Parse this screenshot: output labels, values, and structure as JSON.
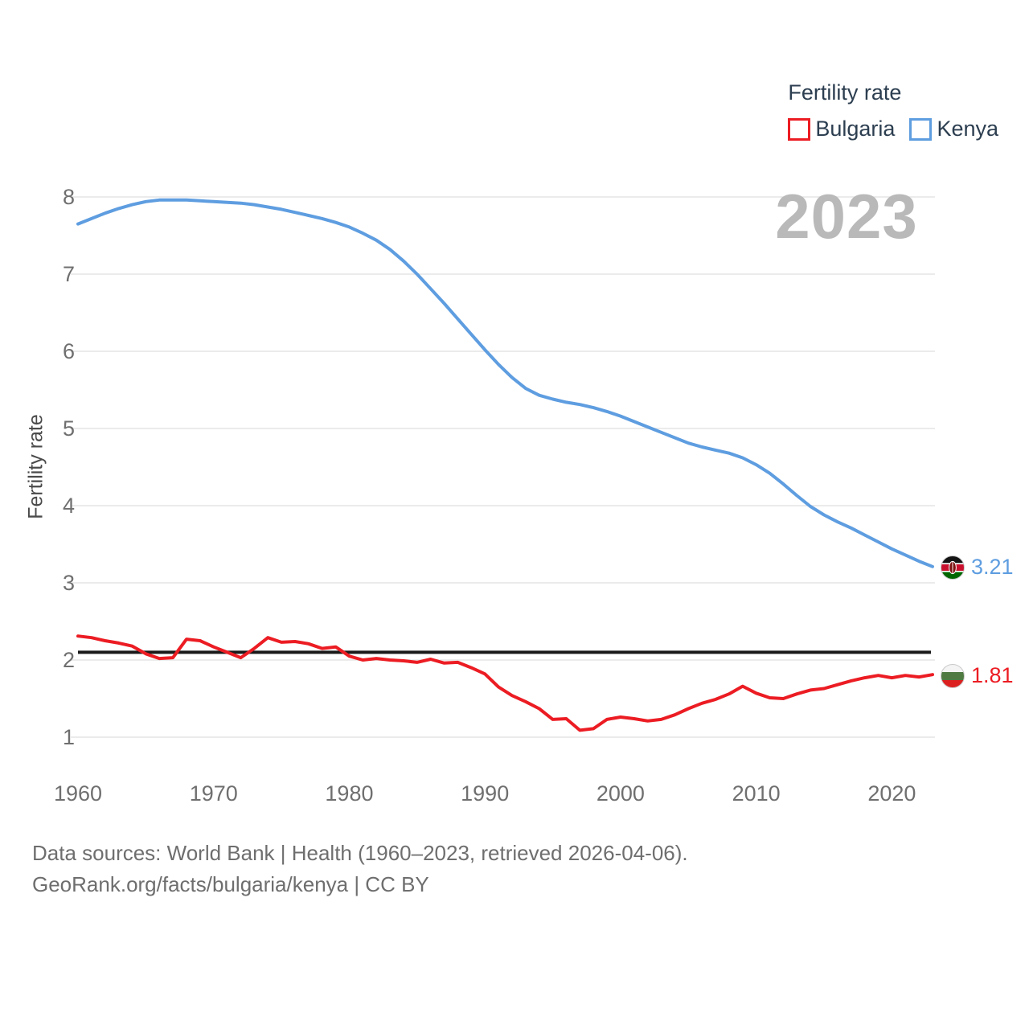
{
  "legend": {
    "title": "Fertility rate",
    "items": [
      {
        "label": "Bulgaria",
        "color": "#ec1c23"
      },
      {
        "label": "Kenya",
        "color": "#5e9de0"
      }
    ]
  },
  "watermark": "2023",
  "end_labels": {
    "kenya": {
      "series": "Kenya",
      "value": "3.21",
      "color": "#5e9de0",
      "flag": "kenya-flag-icon"
    },
    "bulgaria": {
      "series": "Bulgaria",
      "value": "1.81",
      "color": "#ec1c23",
      "flag": "bulgaria-flag-icon"
    }
  },
  "footer": {
    "line1": "Data sources: World Bank | Health (1960–2023, retrieved 2026-04-06).",
    "line2": "GeoRank.org/facts/bulgaria/kenya | CC BY"
  },
  "chart_data": {
    "type": "line",
    "title": "Fertility rate",
    "ylabel": "Fertility rate",
    "xlabel": "",
    "ylim": [
      1,
      8
    ],
    "x_range": [
      1960,
      2023
    ],
    "y_ticks": [
      1,
      2,
      3,
      4,
      5,
      6,
      7,
      8
    ],
    "x_ticks": [
      1960,
      1970,
      1980,
      1990,
      2000,
      2010,
      2020
    ],
    "grid": "horizontal",
    "legend_position": "top-right",
    "watermark": "2023",
    "reference_line": {
      "value": 2.1,
      "color": "#1a1a1a"
    },
    "years": [
      1960,
      1961,
      1962,
      1963,
      1964,
      1965,
      1966,
      1967,
      1968,
      1969,
      1970,
      1971,
      1972,
      1973,
      1974,
      1975,
      1976,
      1977,
      1978,
      1979,
      1980,
      1981,
      1982,
      1983,
      1984,
      1985,
      1986,
      1987,
      1988,
      1989,
      1990,
      1991,
      1992,
      1993,
      1994,
      1995,
      1996,
      1997,
      1998,
      1999,
      2000,
      2001,
      2002,
      2003,
      2004,
      2005,
      2006,
      2007,
      2008,
      2009,
      2010,
      2011,
      2012,
      2013,
      2014,
      2015,
      2016,
      2017,
      2018,
      2019,
      2020,
      2021,
      2022,
      2023
    ],
    "series": [
      {
        "name": "Bulgaria",
        "color": "#ec1c23",
        "end_value": 1.81,
        "values": [
          2.31,
          2.29,
          2.25,
          2.22,
          2.18,
          2.08,
          2.02,
          2.03,
          2.27,
          2.25,
          2.17,
          2.1,
          2.03,
          2.15,
          2.29,
          2.23,
          2.24,
          2.21,
          2.15,
          2.17,
          2.05,
          2.0,
          2.02,
          2.0,
          1.99,
          1.97,
          2.01,
          1.96,
          1.97,
          1.9,
          1.82,
          1.65,
          1.54,
          1.46,
          1.37,
          1.23,
          1.24,
          1.09,
          1.11,
          1.23,
          1.26,
          1.24,
          1.21,
          1.23,
          1.29,
          1.37,
          1.44,
          1.49,
          1.56,
          1.66,
          1.57,
          1.51,
          1.5,
          1.56,
          1.61,
          1.63,
          1.68,
          1.73,
          1.77,
          1.8,
          1.77,
          1.8,
          1.78,
          1.81
        ]
      },
      {
        "name": "Kenya",
        "color": "#5e9de0",
        "end_value": 3.21,
        "values": [
          7.65,
          7.72,
          7.79,
          7.85,
          7.9,
          7.94,
          7.96,
          7.96,
          7.96,
          7.95,
          7.94,
          7.93,
          7.92,
          7.9,
          7.87,
          7.84,
          7.8,
          7.76,
          7.72,
          7.67,
          7.61,
          7.53,
          7.44,
          7.32,
          7.17,
          7.0,
          6.81,
          6.62,
          6.42,
          6.22,
          6.02,
          5.83,
          5.66,
          5.52,
          5.43,
          5.38,
          5.34,
          5.31,
          5.27,
          5.22,
          5.16,
          5.09,
          5.02,
          4.95,
          4.88,
          4.81,
          4.76,
          4.72,
          4.68,
          4.62,
          4.53,
          4.42,
          4.28,
          4.13,
          3.99,
          3.88,
          3.79,
          3.71,
          3.62,
          3.53,
          3.44,
          3.36,
          3.28,
          3.21
        ]
      }
    ]
  }
}
